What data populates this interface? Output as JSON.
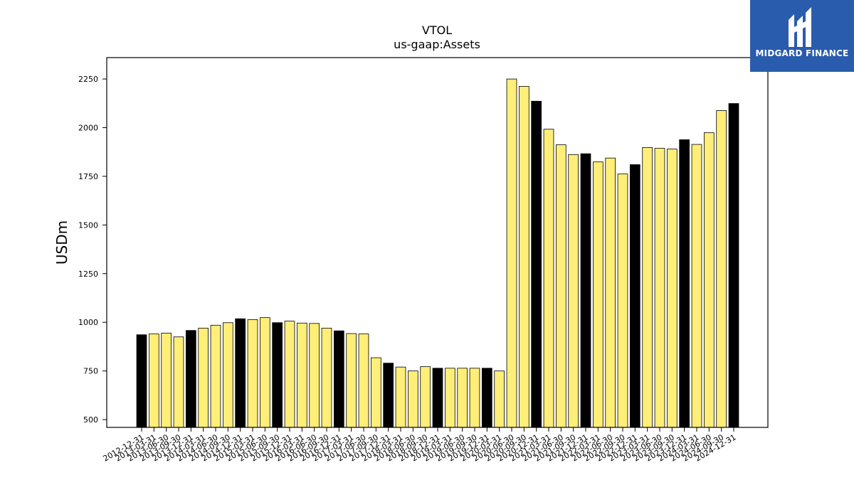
{
  "logo": {
    "text": "MIDGARD FINANCE",
    "bg_color": "#2a5cad"
  },
  "chart_data": {
    "type": "bar",
    "title": "VTOL",
    "subtitle": "us-gaap:Assets",
    "ylabel": "USDm",
    "xlabel": "",
    "ylim": [
      460,
      2360
    ],
    "yticks": [
      500,
      750,
      1000,
      1250,
      1500,
      1750,
      2000,
      2250
    ],
    "grid": false,
    "colors": {
      "quarter_end": "#000000",
      "other": "#ffee77"
    },
    "categories": [
      "2012-12-31",
      "2013-03-31",
      "2013-06-30",
      "2013-09-30",
      "2013-12-31",
      "2014-03-31",
      "2014-06-30",
      "2014-09-30",
      "2014-12-31",
      "2015-03-31",
      "2015-06-30",
      "2015-09-30",
      "2015-12-31",
      "2016-03-31",
      "2016-06-30",
      "2016-09-30",
      "2016-12-31",
      "2017-03-31",
      "2017-06-30",
      "2017-09-30",
      "2017-12-31",
      "2018-03-31",
      "2018-06-30",
      "2018-09-30",
      "2018-12-31",
      "2019-03-31",
      "2019-06-30",
      "2019-09-30",
      "2019-12-31",
      "2020-03-31",
      "2020-06-30",
      "2020-09-30",
      "2020-12-31",
      "2021-03-31",
      "2021-06-30",
      "2021-09-30",
      "2021-12-31",
      "2022-03-31",
      "2022-06-30",
      "2022-09-30",
      "2022-12-31",
      "2023-03-31",
      "2023-06-30",
      "2023-09-30",
      "2023-12-31",
      "2024-03-31",
      "2024-06-30",
      "2024-09-30",
      "2024-12-31"
    ],
    "values": [
      936,
      940,
      944,
      925,
      958,
      970,
      985,
      998,
      1018,
      1014,
      1024,
      998,
      1006,
      996,
      994,
      970,
      956,
      942,
      940,
      818,
      790,
      770,
      750,
      772,
      764,
      764,
      764,
      764,
      764,
      750,
      2250,
      2212,
      2136,
      1992,
      1912,
      1862,
      1866,
      1824,
      1844,
      1762,
      1810,
      1898,
      1894,
      1890,
      1938,
      1914,
      1974,
      2088,
      2124
    ],
    "highlight": [
      true,
      false,
      false,
      false,
      true,
      false,
      false,
      false,
      true,
      false,
      false,
      true,
      false,
      false,
      false,
      false,
      true,
      false,
      false,
      false,
      true,
      false,
      false,
      false,
      true,
      false,
      false,
      false,
      true,
      false,
      false,
      false,
      true,
      false,
      false,
      false,
      true,
      false,
      false,
      false,
      true,
      false,
      false,
      false,
      true,
      false,
      false,
      false,
      true
    ]
  }
}
